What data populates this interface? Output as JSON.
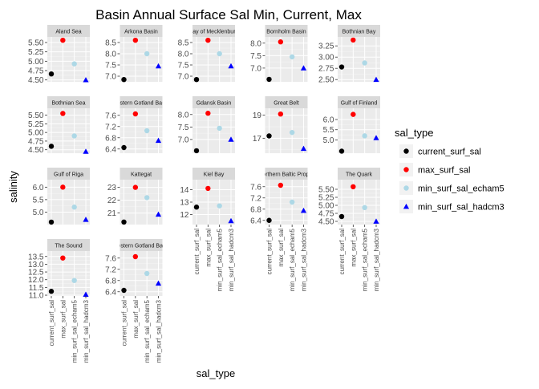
{
  "chart_data": {
    "type": "scatter",
    "title": "Basin Annual Surface Sal Min, Current, Max",
    "xlabel": "sal_type",
    "ylabel": "salinity",
    "facet_scales": "free_y",
    "grid": true,
    "legend_placement": "right",
    "legend": {
      "title": "sal_type",
      "items": [
        {
          "name": "current_surf_sal",
          "color": "#000000",
          "shape": "circle"
        },
        {
          "name": "max_surf_sal",
          "color": "#ff0000",
          "shape": "circle"
        },
        {
          "name": "min_surf_sal_echam5",
          "color": "#add8e6",
          "shape": "circle"
        },
        {
          "name": "min_surf_sal_hadcm3",
          "color": "#0000ff",
          "shape": "triangle"
        }
      ]
    },
    "categories": [
      "current_surf_sal",
      "max_surf_sal",
      "min_surf_sal_echam5",
      "min_surf_sal_hadcm3"
    ],
    "facets": [
      {
        "label": "Aland Sea",
        "ylim": [
          4.45,
          5.65
        ],
        "yticks": [
          "4.50",
          "4.75",
          "5.00",
          "5.25",
          "5.50"
        ],
        "values": [
          4.66,
          5.56,
          4.93,
          4.5
        ]
      },
      {
        "label": "Arkona Basin",
        "ylim": [
          6.75,
          8.75
        ],
        "yticks": [
          "7.0",
          "7.5",
          "8.0",
          "8.5"
        ],
        "values": [
          6.85,
          8.6,
          8.0,
          7.45
        ]
      },
      {
        "label": "Bay of Mecklenburg",
        "ylim": [
          6.75,
          8.75
        ],
        "yticks": [
          "7.0",
          "7.5",
          "8.0",
          "8.5"
        ],
        "values": [
          6.85,
          8.6,
          8.0,
          7.45
        ]
      },
      {
        "label": "Bornholm Basin",
        "ylim": [
          6.45,
          8.25
        ],
        "yticks": [
          "7.0",
          "7.5",
          "8.0"
        ],
        "values": [
          6.55,
          8.05,
          7.45,
          7.0
        ]
      },
      {
        "label": "Bothnian Bay",
        "ylim": [
          2.45,
          3.45
        ],
        "yticks": [
          "2.50",
          "2.75",
          "3.00",
          "3.25"
        ],
        "values": [
          2.78,
          3.38,
          2.87,
          2.5
        ]
      },
      {
        "label": "Bothnian Sea",
        "ylim": [
          4.4,
          5.7
        ],
        "yticks": [
          "4.50",
          "4.75",
          "5.00",
          "5.25",
          "5.50"
        ],
        "values": [
          4.6,
          5.55,
          4.9,
          4.45
        ]
      },
      {
        "label": "Eastern Gotland Basin",
        "ylim": [
          6.25,
          7.85
        ],
        "yticks": [
          "6.4",
          "6.8",
          "7.2",
          "7.6"
        ],
        "values": [
          6.45,
          7.65,
          7.05,
          6.7
        ]
      },
      {
        "label": "Gdansk Basin",
        "ylim": [
          6.45,
          8.25
        ],
        "yticks": [
          "7.0",
          "7.5",
          "8.0"
        ],
        "values": [
          6.55,
          8.05,
          7.45,
          7.0
        ]
      },
      {
        "label": "Great Belt",
        "ylim": [
          15.7,
          19.6
        ],
        "yticks": [
          "15",
          "17",
          "19"
        ],
        "values": [
          17.2,
          19.1,
          17.5,
          16.1
        ]
      },
      {
        "label": "Gulf of Finland",
        "ylim": [
          4.35,
          6.55
        ],
        "yticks": [
          "5.0",
          "5.5",
          "6.0"
        ],
        "values": [
          4.45,
          6.25,
          5.2,
          5.1
        ]
      },
      {
        "label": "Gulf of Riga",
        "ylim": [
          4.5,
          6.3
        ],
        "yticks": [
          "5.0",
          "5.5",
          "6.0"
        ],
        "values": [
          4.6,
          6.0,
          5.2,
          4.7
        ]
      },
      {
        "label": "Kattegat",
        "ylim": [
          20.1,
          23.6
        ],
        "yticks": [
          "21",
          "22",
          "23"
        ],
        "values": [
          20.3,
          23.0,
          22.2,
          20.9
        ]
      },
      {
        "label": "Kiel Bay",
        "ylim": [
          11.2,
          14.8
        ],
        "yticks": [
          "12",
          "13",
          "14"
        ],
        "values": [
          12.6,
          14.1,
          12.7,
          11.5
        ]
      },
      {
        "label": "Northern Baltic Proper",
        "ylim": [
          6.25,
          7.85
        ],
        "yticks": [
          "6.4",
          "6.8",
          "7.2",
          "7.6"
        ],
        "values": [
          6.4,
          7.65,
          7.05,
          6.75
        ]
      },
      {
        "label": "The Quark",
        "ylim": [
          4.4,
          5.8
        ],
        "yticks": [
          "4.50",
          "4.75",
          "5.00",
          "5.25",
          "5.50"
        ],
        "values": [
          4.65,
          5.58,
          4.93,
          4.5
        ]
      },
      {
        "label": "The Sound",
        "ylim": [
          10.95,
          13.85
        ],
        "yticks": [
          "11.0",
          "11.5",
          "12.0",
          "12.5",
          "13.0",
          "13.5"
        ],
        "values": [
          11.25,
          13.4,
          11.95,
          11.05
        ]
      },
      {
        "label": "Western Gotland Basin",
        "ylim": [
          6.25,
          7.85
        ],
        "yticks": [
          "6.4",
          "6.8",
          "7.2",
          "7.6"
        ],
        "values": [
          6.45,
          7.65,
          7.05,
          6.7
        ]
      }
    ]
  }
}
